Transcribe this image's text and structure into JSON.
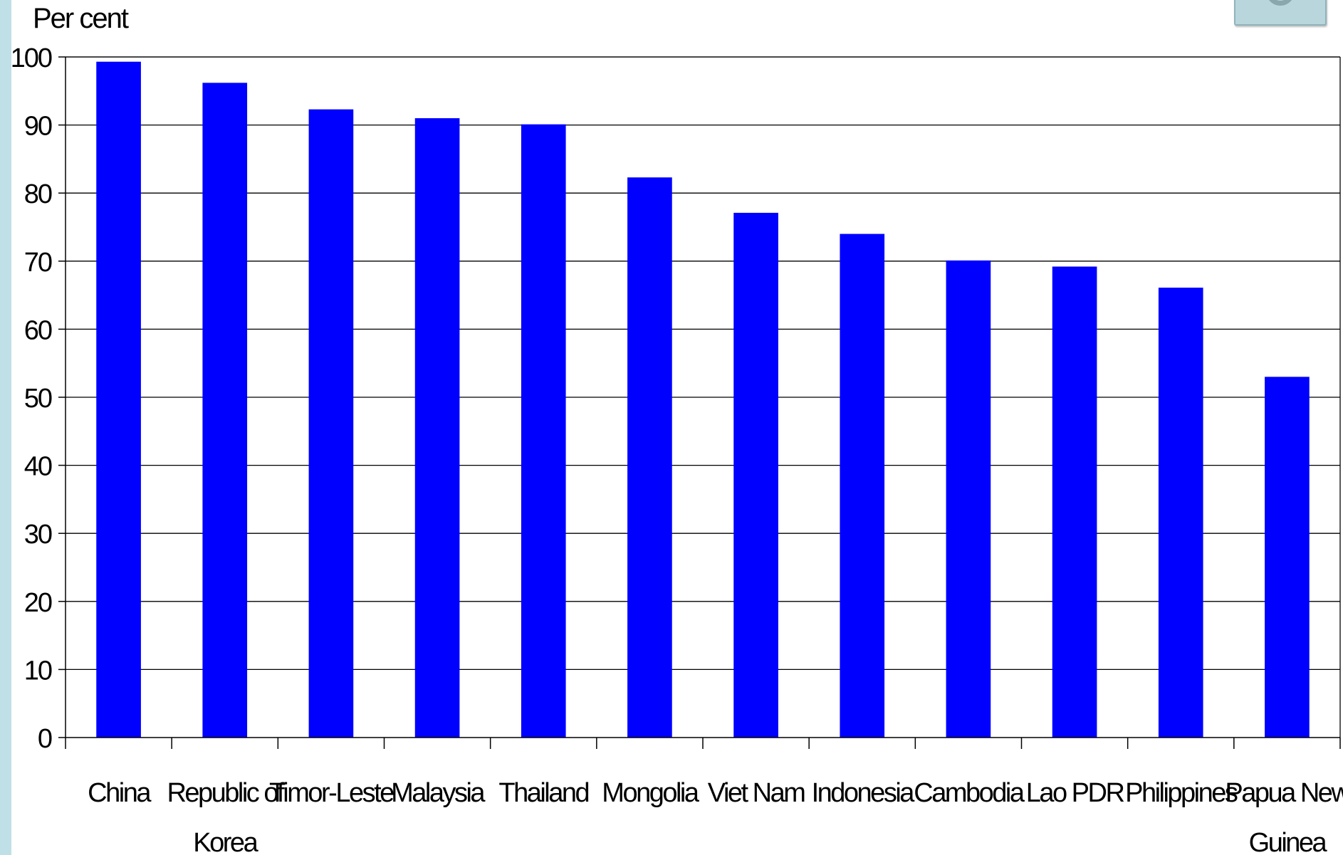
{
  "chart_data": {
    "type": "bar",
    "ylabel": "Per cent",
    "xlabel": "",
    "ylim": [
      0,
      100
    ],
    "yticks": [
      0,
      10,
      20,
      30,
      40,
      50,
      60,
      70,
      80,
      90,
      100
    ],
    "grid": true,
    "categories": [
      [
        "China"
      ],
      [
        "Republic of",
        "Korea"
      ],
      [
        "Timor-Leste"
      ],
      [
        "Malaysia"
      ],
      [
        "Thailand"
      ],
      [
        "Mongolia"
      ],
      [
        "Viet Nam"
      ],
      [
        "Indonesia"
      ],
      [
        "Cambodia"
      ],
      [
        "Lao PDR"
      ],
      [
        "Philippines"
      ],
      [
        "Papua New",
        "Guinea"
      ]
    ],
    "values": [
      99.3,
      96.2,
      92.3,
      91.0,
      90.1,
      82.3,
      77.1,
      74.0,
      70.1,
      69.2,
      66.1,
      53.0
    ],
    "bar_color": "#0000ff"
  }
}
